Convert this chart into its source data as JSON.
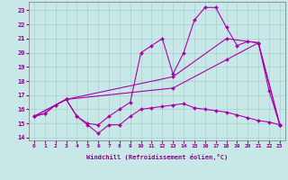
{
  "xlabel": "Windchill (Refroidissement éolien,°C)",
  "background_color": "#c8e8e8",
  "line_color": "#aa00aa",
  "xlim": [
    -0.5,
    23.5
  ],
  "ylim": [
    13.8,
    23.6
  ],
  "yticks": [
    14,
    15,
    16,
    17,
    18,
    19,
    20,
    21,
    22,
    23
  ],
  "xticks": [
    0,
    1,
    2,
    3,
    4,
    5,
    6,
    7,
    8,
    9,
    10,
    11,
    12,
    13,
    14,
    15,
    16,
    17,
    18,
    19,
    20,
    21,
    22,
    23
  ],
  "line1_x": [
    0,
    1,
    2,
    3,
    4,
    5,
    6,
    7,
    8,
    9,
    10,
    11,
    12,
    13,
    14,
    15,
    16,
    17,
    18,
    19,
    20,
    21,
    22,
    23
  ],
  "line1_y": [
    15.5,
    15.7,
    16.3,
    16.7,
    15.5,
    14.9,
    14.3,
    14.9,
    14.9,
    15.5,
    16.0,
    16.1,
    16.2,
    16.3,
    16.4,
    16.1,
    16.0,
    15.9,
    15.8,
    15.6,
    15.4,
    15.2,
    15.1,
    14.9
  ],
  "line2_x": [
    0,
    1,
    2,
    3,
    4,
    5,
    6,
    7,
    8,
    9,
    10,
    11,
    12,
    13,
    14,
    15,
    16,
    17,
    18,
    19,
    20,
    21,
    22,
    23
  ],
  "line2_y": [
    15.5,
    15.7,
    16.3,
    16.7,
    15.5,
    15.0,
    14.9,
    15.5,
    16.0,
    16.5,
    20.0,
    20.5,
    21.0,
    18.5,
    20.0,
    22.3,
    23.2,
    23.2,
    21.8,
    20.5,
    20.8,
    20.7,
    17.3,
    14.9
  ],
  "line3_x": [
    0,
    3,
    13,
    18,
    21,
    23
  ],
  "line3_y": [
    15.5,
    16.7,
    18.3,
    21.0,
    20.7,
    14.9
  ],
  "line4_x": [
    0,
    3,
    13,
    18,
    21,
    23
  ],
  "line4_y": [
    15.5,
    16.7,
    17.5,
    19.5,
    20.7,
    14.9
  ]
}
